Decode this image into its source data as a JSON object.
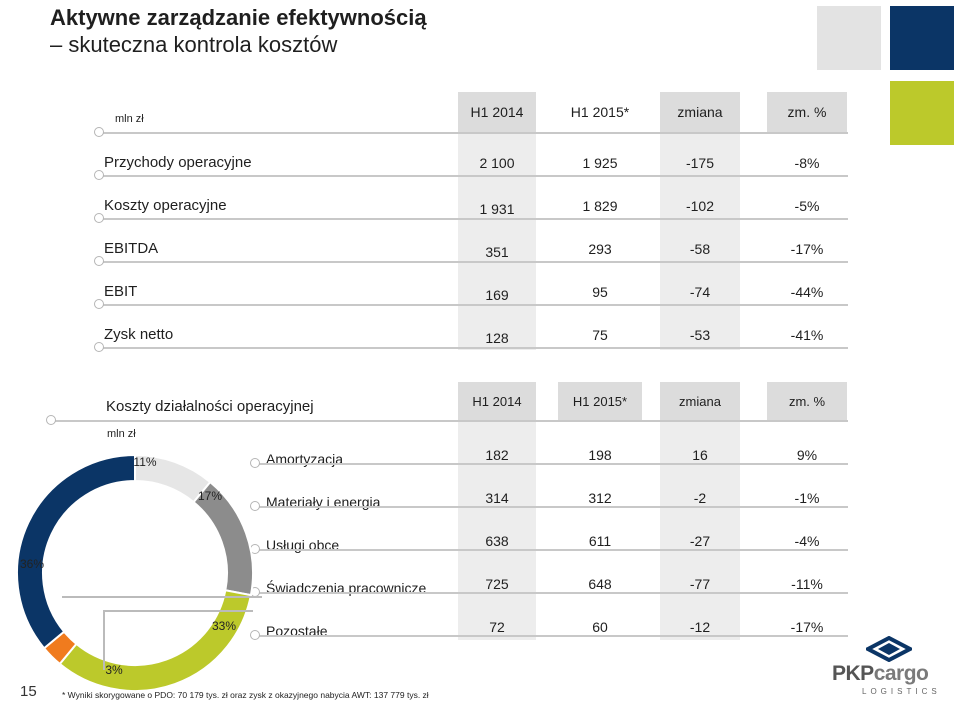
{
  "title": {
    "line1": "Aktywne zarządzanie efektywnością",
    "line2": "– skuteczna kontrola kosztów"
  },
  "colors": {
    "navy": "#0b3566",
    "lime": "#bcc92b",
    "grey": "#8c8c8c",
    "light_grey": "#e6e6e6",
    "orange": "#f07b1e"
  },
  "table1": {
    "unit": "mln zł",
    "headers": [
      "H1 2014",
      "H1 2015*",
      "zmiana",
      "zm. %"
    ],
    "rows": [
      {
        "label": "Przychody operacyjne",
        "values": [
          "2 100",
          "1 925",
          "-175",
          "-8%"
        ]
      },
      {
        "label": "Koszty operacyjne",
        "values": [
          "1 931",
          "1 829",
          "-102",
          "-5%"
        ]
      },
      {
        "label": "EBITDA",
        "values": [
          "351",
          "293",
          "-58",
          "-17%"
        ]
      },
      {
        "label": "EBIT",
        "values": [
          "169",
          "95",
          "-74",
          "-44%"
        ]
      },
      {
        "label": "Zysk netto",
        "values": [
          "128",
          "75",
          "-53",
          "-41%"
        ]
      }
    ]
  },
  "table2": {
    "title": "Koszty działalności operacyjnej",
    "unit": "mln zł",
    "headers": [
      "H1 2014",
      "H1 2015*",
      "zmiana",
      "zm. %"
    ],
    "rows": [
      {
        "label": "Amortyzacja",
        "values": [
          "182",
          "198",
          "16",
          "9%"
        ]
      },
      {
        "label": "Materiały i energia",
        "values": [
          "314",
          "312",
          "-2",
          "-1%"
        ]
      },
      {
        "label": "Usługi obce",
        "values": [
          "638",
          "611",
          "-27",
          "-4%"
        ]
      },
      {
        "label": "Świadczenia pracownicze",
        "values": [
          "725",
          "648",
          "-77",
          "-11%"
        ]
      },
      {
        "label": "Pozostałe",
        "values": [
          "72",
          "60",
          "-12",
          "-17%"
        ]
      }
    ]
  },
  "chart_data": {
    "type": "pie",
    "labels": [
      "11%",
      "17%",
      "33%",
      "3%",
      "36%"
    ],
    "values": [
      11,
      17,
      33,
      3,
      36
    ],
    "colors": [
      "#e6e6e6",
      "#8c8c8c",
      "#bcc92b",
      "#f07b1e",
      "#0b3566"
    ]
  },
  "footnote": "* Wyniki skorygowane o PDO: 70 179 tys. zł oraz zysk z okazyjnego nabycia AWT: 137 779 tys. zł",
  "page_number": "15",
  "logo": {
    "brand1": "PKP",
    "brand2": "cargo",
    "sub": "LOGISTICS"
  }
}
